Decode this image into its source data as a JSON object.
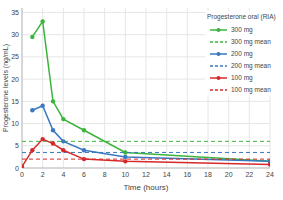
{
  "chart_data": {
    "type": "line",
    "title": "Progesterone oral (RIA)",
    "x_label": "Time (hours)",
    "y_label": "Progesterone levels (ng/mL)",
    "x": [
      0,
      1,
      2,
      3,
      4,
      6,
      10,
      24
    ],
    "series": [
      {
        "name": "300 mg",
        "color": "#3cb43c",
        "marker": "circle",
        "line_style": "solid",
        "values": [
          null,
          29.5,
          33,
          15,
          11,
          8.5,
          3.5,
          1.5
        ]
      },
      {
        "name": "300 mg mean",
        "color": "#3cb43c",
        "marker": "none",
        "line_style": "dashed",
        "values": [
          6,
          6,
          6,
          6,
          6,
          6,
          6,
          6
        ]
      },
      {
        "name": "200 mg",
        "color": "#3a78c0",
        "marker": "circle",
        "line_style": "solid",
        "values": [
          null,
          13,
          14,
          8.5,
          6,
          4,
          2.5,
          1.5
        ]
      },
      {
        "name": "200 mg mean",
        "color": "#3a78c0",
        "marker": "none",
        "line_style": "dashed",
        "values": [
          3.5,
          3.5,
          3.5,
          3.5,
          3.5,
          3.5,
          3.5,
          3.5
        ]
      },
      {
        "name": "100 mg",
        "color": "#d62a2a",
        "marker": "circle",
        "line_style": "solid",
        "values": [
          0.3,
          4,
          6.5,
          5.5,
          4,
          2,
          1.5,
          0.8
        ]
      },
      {
        "name": "100 mg mean",
        "color": "#d62a2a",
        "marker": "none",
        "line_style": "dashed",
        "values": [
          2,
          2,
          2,
          2,
          2,
          2,
          2,
          2
        ]
      }
    ],
    "xlim": [
      0,
      24
    ],
    "xticks": [
      0,
      2,
      4,
      6,
      8,
      10,
      12,
      14,
      16,
      18,
      20,
      22,
      24
    ],
    "ylim": [
      0,
      36
    ],
    "yticks": [
      0,
      5,
      10,
      15,
      20,
      25,
      30,
      35
    ],
    "grid": true,
    "legend": "top-right"
  }
}
